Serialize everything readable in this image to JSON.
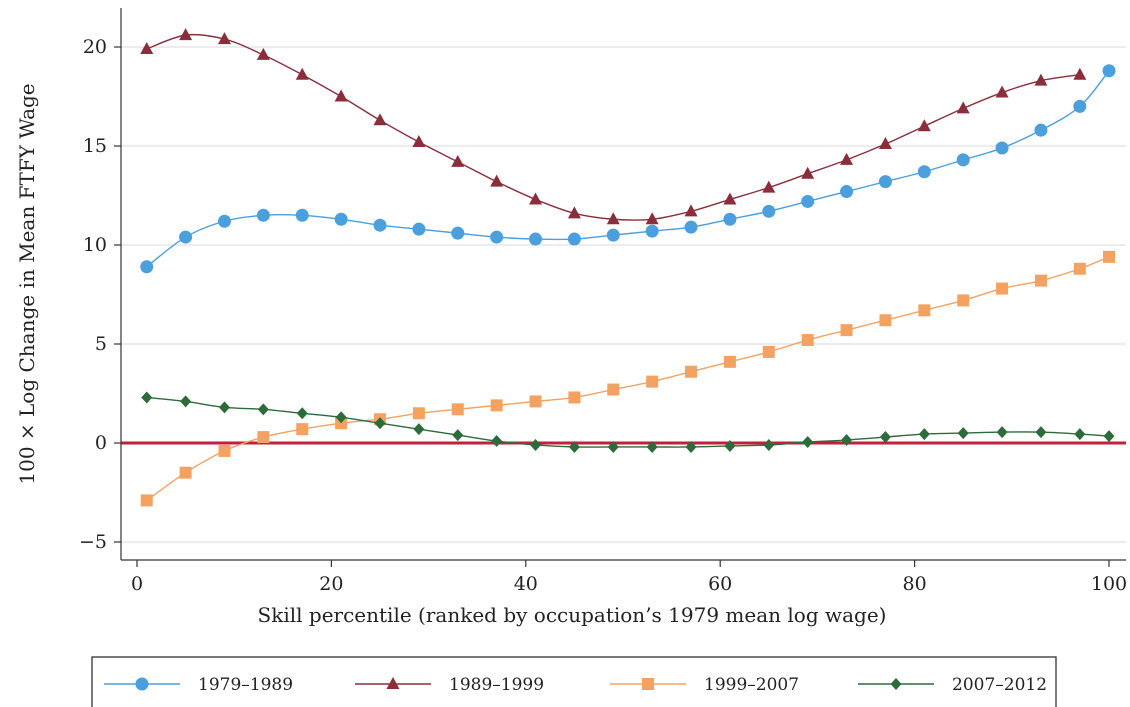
{
  "chart_data": {
    "type": "line",
    "title": "",
    "xlabel": "Skill percentile (ranked by occupation’s 1979 mean log wage)",
    "ylabel": "100 × Log Change in Mean FTFY Wage",
    "xlim": [
      -3,
      101
    ],
    "ylim": [
      -6,
      22
    ],
    "xticks": [
      0,
      20,
      40,
      60,
      80,
      100
    ],
    "yticks": [
      -5,
      0,
      5,
      10,
      15,
      20
    ],
    "xtick_labels": [
      "0",
      "20",
      "40",
      "60",
      "80",
      "100"
    ],
    "ytick_labels": [
      "−5",
      "0",
      "5",
      "10",
      "15",
      "20"
    ],
    "grid": "horizontal",
    "zero_line_color": "#c0203a",
    "legend_position": "bottom",
    "series": [
      {
        "name": "1979–1989",
        "color": "#4a9fdc",
        "marker": "circle",
        "x": [
          1,
          5,
          9,
          13,
          17,
          21,
          25,
          29,
          33,
          37,
          41,
          45,
          49,
          53,
          57,
          61,
          65,
          69,
          73,
          77,
          81,
          85,
          89,
          93,
          97,
          100
        ],
        "values": [
          8.9,
          10.4,
          11.2,
          11.5,
          11.5,
          11.3,
          11.0,
          10.8,
          10.6,
          10.4,
          10.3,
          10.3,
          10.5,
          10.7,
          10.9,
          11.3,
          11.7,
          12.2,
          12.7,
          13.2,
          13.7,
          14.3,
          14.9,
          15.8,
          17.0,
          18.8
        ]
      },
      {
        "name": "1989–1999",
        "color": "#8b2e3c",
        "marker": "triangle",
        "x": [
          1,
          5,
          9,
          13,
          17,
          21,
          25,
          29,
          33,
          37,
          41,
          45,
          49,
          53,
          57,
          61,
          65,
          69,
          73,
          77,
          81,
          85,
          89,
          93,
          97
        ],
        "values": [
          19.9,
          20.6,
          20.4,
          19.6,
          18.6,
          17.5,
          16.3,
          15.2,
          14.2,
          13.2,
          12.3,
          11.6,
          11.3,
          11.3,
          11.7,
          12.3,
          12.9,
          13.6,
          14.3,
          15.1,
          16.0,
          16.9,
          17.7,
          18.3,
          18.6
        ]
      },
      {
        "name": "1999–2007",
        "color": "#f4a261",
        "marker": "square",
        "x": [
          1,
          5,
          9,
          13,
          17,
          21,
          25,
          29,
          33,
          37,
          41,
          45,
          49,
          53,
          57,
          61,
          65,
          69,
          73,
          77,
          81,
          85,
          89,
          93,
          97,
          100
        ],
        "values": [
          -2.9,
          -1.5,
          -0.4,
          0.3,
          0.7,
          1.0,
          1.2,
          1.5,
          1.7,
          1.9,
          2.1,
          2.3,
          2.7,
          3.1,
          3.6,
          4.1,
          4.6,
          5.2,
          5.7,
          6.2,
          6.7,
          7.2,
          7.8,
          8.2,
          8.8,
          9.4
        ]
      },
      {
        "name": "2007–2012",
        "color": "#2e6b3a",
        "marker": "diamond",
        "x": [
          1,
          5,
          9,
          13,
          17,
          21,
          25,
          29,
          33,
          37,
          41,
          45,
          49,
          53,
          57,
          61,
          65,
          69,
          73,
          77,
          81,
          85,
          89,
          93,
          97,
          100
        ],
        "values": [
          2.3,
          2.1,
          1.8,
          1.7,
          1.5,
          1.3,
          1.0,
          0.7,
          0.4,
          0.1,
          -0.1,
          -0.2,
          -0.2,
          -0.2,
          -0.2,
          -0.15,
          -0.1,
          0.05,
          0.15,
          0.3,
          0.45,
          0.5,
          0.55,
          0.55,
          0.45,
          0.35
        ]
      }
    ]
  }
}
